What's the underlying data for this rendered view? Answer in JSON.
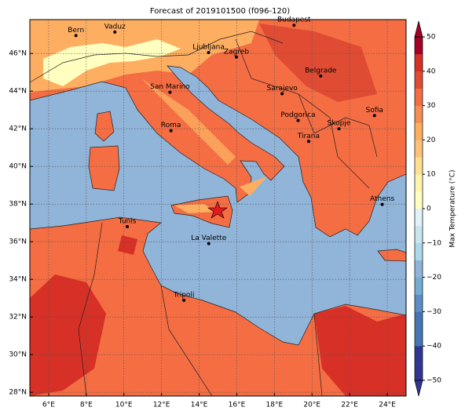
{
  "title": "Forecast of 2019101500 (f096-120)",
  "map": {
    "xlim": [
      5,
      25
    ],
    "ylim": [
      27.8,
      47.8
    ],
    "xticks": [
      {
        "value": 6,
        "label": "6°E"
      },
      {
        "value": 8,
        "label": "8°E"
      },
      {
        "value": 10,
        "label": "10°E"
      },
      {
        "value": 12,
        "label": "12°E"
      },
      {
        "value": 14,
        "label": "14°E"
      },
      {
        "value": 16,
        "label": "16°E"
      },
      {
        "value": 18,
        "label": "18°E"
      },
      {
        "value": 20,
        "label": "20°E"
      },
      {
        "value": 22,
        "label": "22°E"
      },
      {
        "value": 24,
        "label": "24°E"
      }
    ],
    "yticks": [
      {
        "value": 28,
        "label": "28°N"
      },
      {
        "value": 30,
        "label": "30°N"
      },
      {
        "value": 32,
        "label": "32°N"
      },
      {
        "value": 34,
        "label": "34°N"
      },
      {
        "value": 36,
        "label": "36°N"
      },
      {
        "value": 38,
        "label": "38°N"
      },
      {
        "value": 40,
        "label": "40°N"
      },
      {
        "value": 42,
        "label": "42°N"
      },
      {
        "value": 44,
        "label": "44°N"
      },
      {
        "value": 46,
        "label": "46°N"
      }
    ],
    "cities": [
      {
        "label": "Bern",
        "lon": 7.45,
        "lat": 46.95
      },
      {
        "label": "Vaduz",
        "lon": 9.52,
        "lat": 47.14
      },
      {
        "label": "Budapest",
        "lon": 19.04,
        "lat": 47.5
      },
      {
        "label": "Ljubljana",
        "lon": 14.5,
        "lat": 46.05
      },
      {
        "label": "Zagreb",
        "lon": 15.98,
        "lat": 45.81
      },
      {
        "label": "Belgrade",
        "lon": 20.46,
        "lat": 44.8
      },
      {
        "label": "San Marino",
        "lon": 12.45,
        "lat": 43.94
      },
      {
        "label": "Sarajevo",
        "lon": 18.41,
        "lat": 43.86
      },
      {
        "label": "Sofia",
        "lon": 23.32,
        "lat": 42.7
      },
      {
        "label": "Podgorica",
        "lon": 19.26,
        "lat": 42.44
      },
      {
        "label": "Skopje",
        "lon": 21.43,
        "lat": 42.0
      },
      {
        "label": "Roma",
        "lon": 12.5,
        "lat": 41.9
      },
      {
        "label": "Tirana",
        "lon": 19.82,
        "lat": 41.33
      },
      {
        "label": "Athens",
        "lon": 23.73,
        "lat": 37.98
      },
      {
        "label": "Tunis",
        "lon": 10.18,
        "lat": 36.8
      },
      {
        "label": "La Valette",
        "lon": 14.51,
        "lat": 35.9
      },
      {
        "label": "Tripoli",
        "lon": 13.19,
        "lat": 32.89
      }
    ]
  },
  "colorbar": {
    "label": "Max Temperature (°C)",
    "lim": [
      -50,
      50
    ],
    "ticks": [
      {
        "value": -50,
        "label": "−50"
      },
      {
        "value": -40,
        "label": "−40"
      },
      {
        "value": -30,
        "label": "−30"
      },
      {
        "value": -20,
        "label": "−20"
      },
      {
        "value": -10,
        "label": "−10"
      },
      0,
      10,
      20,
      30,
      40,
      50
    ],
    "colors": [
      "#313695",
      "#313695",
      "#4575b4",
      "#4575b4",
      "#5e8dc4",
      "#74add1",
      "#91b4d9",
      "#abd9e9",
      "#c8e6f0",
      "#e0f3f8",
      "#ffffbf",
      "#fff3b0",
      "#fee090",
      "#fdc27a",
      "#fdae61",
      "#f68d52",
      "#f46d43",
      "#e04b33",
      "#d73027",
      "#a50026"
    ]
  }
}
